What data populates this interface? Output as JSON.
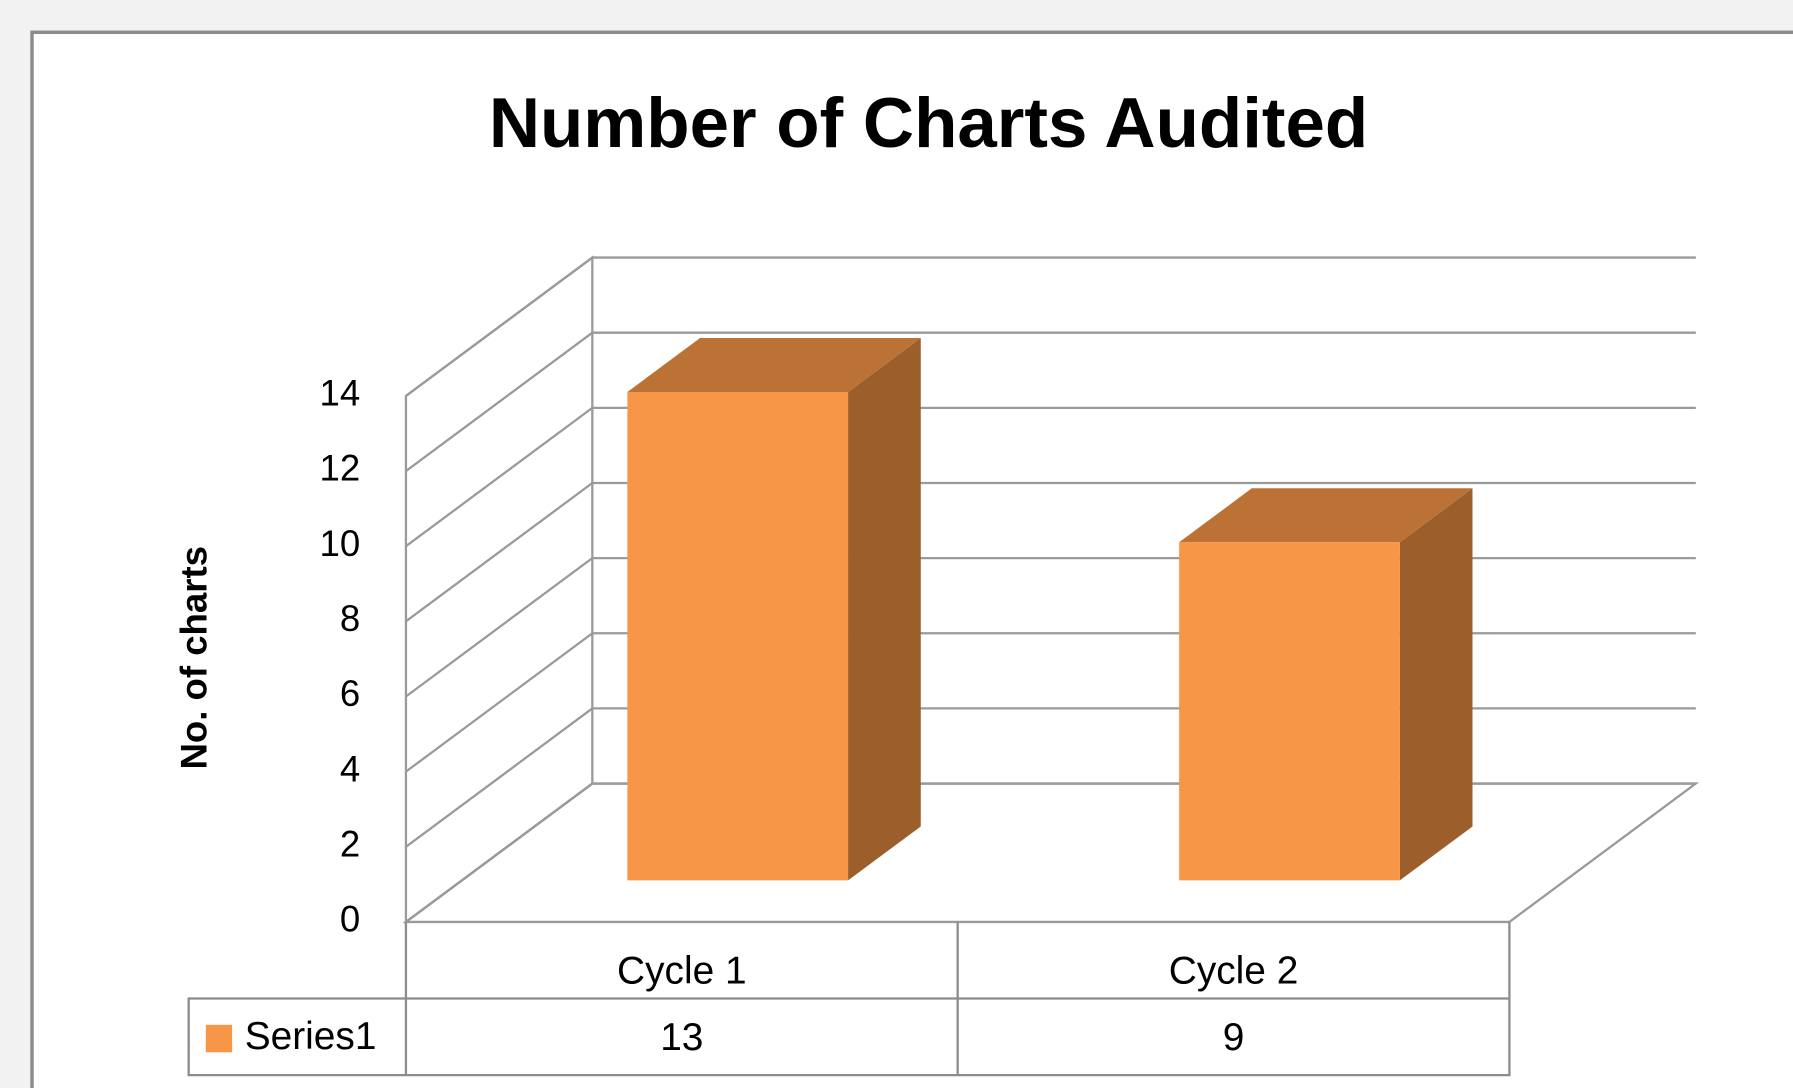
{
  "chart_data": {
    "type": "bar3d",
    "title": "Number of Charts Audited",
    "y_label": "No. of charts",
    "categories": [
      "Cycle 1",
      "Cycle 2"
    ],
    "series": [
      {
        "name": "Series1",
        "color": "#f79646",
        "values": [
          13,
          9
        ]
      }
    ],
    "ylim": [
      0,
      14
    ],
    "yticks": [
      0,
      2,
      4,
      6,
      8,
      10,
      12,
      14
    ],
    "grid": true,
    "data_table": true
  }
}
